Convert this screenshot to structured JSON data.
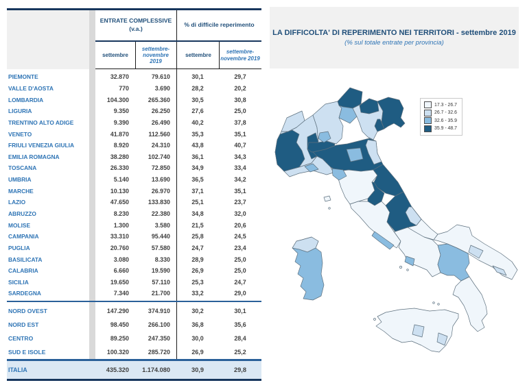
{
  "map_panel": {
    "title": "LA DIFFICOLTA' DI REPERIMENTO NEI TERRITORI - settembre 2019",
    "subtitle": "(% sul totale entrate per provincia)",
    "legend": [
      {
        "label": "17.3 - 26.7",
        "color": "#f0f6fb"
      },
      {
        "label": "26.7 - 32.6",
        "color": "#cde0f1"
      },
      {
        "label": "32.6 - 35.9",
        "color": "#8abce0"
      },
      {
        "label": "35.9 - 48.7",
        "color": "#1f5c82"
      }
    ]
  },
  "chart_data": [
    {
      "type": "table",
      "col_groups": [
        "ENTRATE COMPLESSIVE (v.a.)",
        "% di difficile reperimento"
      ],
      "sub_columns": [
        "settembre",
        "settembre-novembre 2019",
        "settembre",
        "settembre-novembre 2019"
      ],
      "region_rows": [
        [
          "PIEMONTE",
          "32.870",
          "79.610",
          "30,1",
          "29,7"
        ],
        [
          "VALLE D'AOSTA",
          "770",
          "3.690",
          "28,2",
          "20,2"
        ],
        [
          "LOMBARDIA",
          "104.300",
          "265.360",
          "30,5",
          "30,8"
        ],
        [
          "LIGURIA",
          "9.350",
          "26.250",
          "27,6",
          "25,0"
        ],
        [
          "TRENTINO ALTO ADIGE",
          "9.390",
          "26.490",
          "40,2",
          "37,8"
        ],
        [
          "VENETO",
          "41.870",
          "112.560",
          "35,3",
          "35,1"
        ],
        [
          "FRIULI VENEZIA GIULIA",
          "8.920",
          "24.310",
          "43,8",
          "40,7"
        ],
        [
          "EMILIA ROMAGNA",
          "38.280",
          "102.740",
          "36,1",
          "34,3"
        ],
        [
          "TOSCANA",
          "26.330",
          "72.850",
          "34,9",
          "33,4"
        ],
        [
          "UMBRIA",
          "5.140",
          "13.690",
          "36,5",
          "34,2"
        ],
        [
          "MARCHE",
          "10.130",
          "26.970",
          "37,1",
          "35,1"
        ],
        [
          "LAZIO",
          "47.650",
          "133.830",
          "25,1",
          "23,7"
        ],
        [
          "ABRUZZO",
          "8.230",
          "22.380",
          "34,8",
          "32,0"
        ],
        [
          "MOLISE",
          "1.300",
          "3.580",
          "21,5",
          "20,6"
        ],
        [
          "CAMPANIA",
          "33.310",
          "95.440",
          "25,8",
          "24,5"
        ],
        [
          "PUGLIA",
          "20.760",
          "57.580",
          "24,7",
          "23,4"
        ],
        [
          "BASILICATA",
          "3.080",
          "8.330",
          "28,9",
          "25,0"
        ],
        [
          "CALABRIA",
          "6.660",
          "19.590",
          "26,9",
          "25,0"
        ],
        [
          "SICILIA",
          "19.650",
          "57.110",
          "25,3",
          "24,7"
        ],
        [
          "SARDEGNA",
          "7.340",
          "21.700",
          "33,2",
          "29,0"
        ]
      ],
      "area_rows": [
        [
          "NORD OVEST",
          "147.290",
          "374.910",
          "30,2",
          "30,1"
        ],
        [
          "NORD EST",
          "98.450",
          "266.100",
          "36,8",
          "35,6"
        ],
        [
          "CENTRO",
          "89.250",
          "247.350",
          "30,0",
          "28,4"
        ],
        [
          "SUD E ISOLE",
          "100.320",
          "285.720",
          "26,9",
          "25,2"
        ]
      ],
      "total_row": [
        "ITALIA",
        "435.320",
        "1.174.080",
        "30,9",
        "29,8"
      ]
    },
    {
      "type": "heatmap",
      "subtype": "choropleth-map-italy-provinces",
      "title": "LA DIFFICOLTA' DI REPERIMENTO NEI TERRITORI - settembre 2019",
      "subtitle": "(% sul totale entrate per provincia)",
      "legend_bins": [
        "17.3 - 26.7",
        "26.7 - 32.6",
        "32.6 - 35.9",
        "35.9 - 48.7"
      ],
      "area_classes": {
        "valle-daosta": 2,
        "piemonte": 2,
        "piemonte-west": 4,
        "piemonte-east": 4,
        "liguria": 2,
        "genova": 3,
        "lombardia": 2,
        "lombardia-sud": 4,
        "milano": 3,
        "bolzano": 4,
        "trento": 3,
        "veneto": 2,
        "belluno": 4,
        "venezia": 4,
        "friuli": 4,
        "emilia": 4,
        "emilia-ne": 2,
        "reggio-emilia": 3,
        "toscana": 1,
        "toscana-nw": 3,
        "elba": 1,
        "marche": 4,
        "umbria": 4,
        "lazio": 1,
        "latina": 3,
        "abruzzo": 4,
        "abruzzo-coast": 2,
        "molise": 1,
        "campania": 1,
        "napoli": 3,
        "puglia": 1,
        "bari": 2,
        "brindisi": 2,
        "basilicata": 3,
        "calabria": 1,
        "sicilia": 1,
        "caltanissetta": 2,
        "siracusa": 2,
        "sardegna": 3,
        "sardegna-north": 2,
        "small-island": 1
      }
    }
  ]
}
